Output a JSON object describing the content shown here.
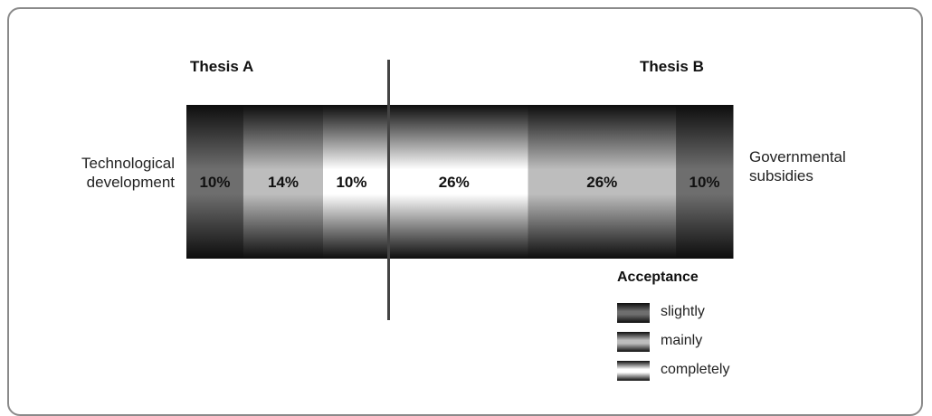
{
  "chart_data": {
    "type": "bar",
    "orientation": "horizontal-stacked",
    "theses": {
      "left": "Thesis A",
      "right": "Thesis B"
    },
    "row_labels": {
      "left": "Technological\ndevelopment",
      "right": "Governmental\nsubsidies"
    },
    "segments": [
      {
        "value": 10,
        "label": "10%",
        "acceptance": "slightly",
        "thesis": "A"
      },
      {
        "value": 14,
        "label": "14%",
        "acceptance": "mainly",
        "thesis": "A"
      },
      {
        "value": 10,
        "label": "10%",
        "acceptance": "completely",
        "thesis": "A"
      },
      {
        "value": 26,
        "label": "26%",
        "acceptance": "completely",
        "thesis": "B"
      },
      {
        "value": 26,
        "label": "26%",
        "acceptance": "mainly",
        "thesis": "B"
      },
      {
        "value": 10,
        "label": "10%",
        "acceptance": "slightly",
        "thesis": "B"
      }
    ],
    "legend": {
      "title": "Acceptance",
      "position": "bottom-right",
      "items": [
        {
          "key": "slightly",
          "label": "slightly"
        },
        {
          "key": "mainly",
          "label": "mainly"
        },
        {
          "key": "completely",
          "label": "completely"
        }
      ]
    },
    "styles": {
      "slightly": {
        "edge": "#0d0d0d",
        "center": "#6e6e6e"
      },
      "mainly": {
        "edge": "#0d0d0d",
        "center": "#bdbdbd"
      },
      "completely": {
        "edge": "#0d0d0d",
        "center": "#ffffff"
      }
    }
  }
}
